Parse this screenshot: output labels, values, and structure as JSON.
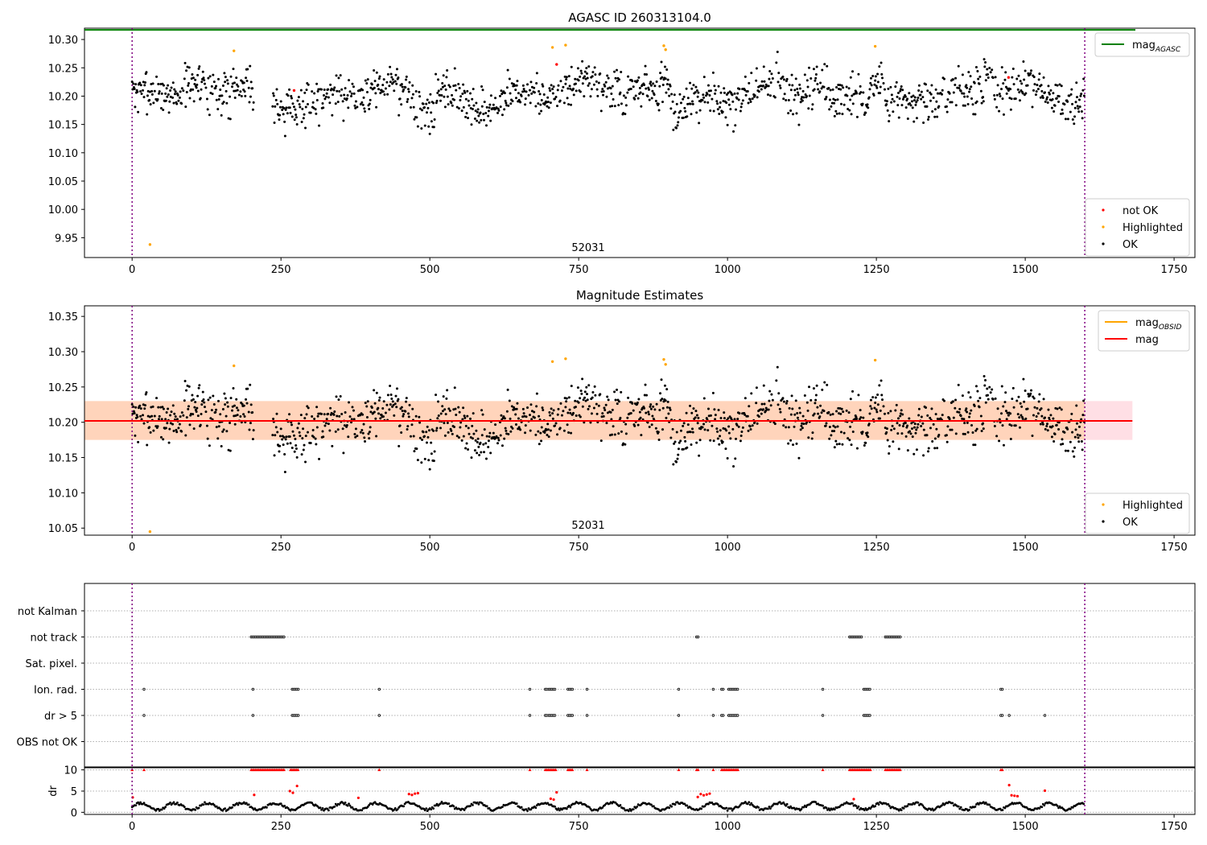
{
  "chart_data": [
    {
      "type": "scatter",
      "title": "AGASC ID 260313104.0",
      "xlim": [
        -80,
        1785
      ],
      "ylim": [
        9.915,
        10.32
      ],
      "x_ticks": [
        0,
        250,
        500,
        750,
        1000,
        1250,
        1500,
        1750
      ],
      "y_ticks": [
        9.95,
        10.0,
        10.05,
        10.1,
        10.15,
        10.2,
        10.25,
        10.3
      ],
      "y_tick_labels": [
        "9.95",
        "10.00",
        "10.05",
        "10.10",
        "10.15",
        "10.20",
        "10.25",
        "10.30"
      ],
      "x_tick_labels": [
        "0",
        "250",
        "500",
        "750",
        "1000",
        "1250",
        "1500",
        "1750"
      ],
      "obsid_label": "52031",
      "obsid_boundaries": [
        0,
        1600
      ],
      "hlines": [
        {
          "name": "mag_AGASC",
          "y": 10.317,
          "color": "#008000"
        }
      ],
      "legend_lines": [
        {
          "label": "mag",
          "sub": "AGASC",
          "color": "#008000"
        }
      ],
      "legend_points": [
        {
          "label": "not OK",
          "color": "#ff0000"
        },
        {
          "label": "Highlighted",
          "color": "#ffa500"
        },
        {
          "label": "OK",
          "color": "#000000"
        }
      ],
      "highlighted": [
        [
          30,
          9.938
        ],
        [
          171,
          10.28
        ],
        [
          706,
          10.286
        ],
        [
          728,
          10.29
        ],
        [
          893,
          10.289
        ],
        [
          896,
          10.282
        ],
        [
          1248,
          10.288
        ]
      ],
      "not_ok": [
        [
          272,
          10.21
        ],
        [
          713,
          10.256
        ],
        [
          1472,
          10.233
        ]
      ]
    },
    {
      "type": "scatter",
      "title": "Magnitude Estimates",
      "xlim": [
        -80,
        1785
      ],
      "ylim": [
        10.04,
        10.365
      ],
      "x_ticks": [
        0,
        250,
        500,
        750,
        1000,
        1250,
        1500,
        1750
      ],
      "y_ticks": [
        10.05,
        10.1,
        10.15,
        10.2,
        10.25,
        10.3,
        10.35
      ],
      "y_tick_labels": [
        "10.05",
        "10.10",
        "10.15",
        "10.20",
        "10.25",
        "10.30",
        "10.35"
      ],
      "x_tick_labels": [
        "0",
        "250",
        "500",
        "750",
        "1000",
        "1250",
        "1500",
        "1750"
      ],
      "obsid_label": "52031",
      "obsid_boundaries": [
        0,
        1600
      ],
      "mean_mag": 10.202,
      "band": [
        10.175,
        10.23
      ],
      "band_x_end": 1680,
      "legend_lines": [
        {
          "label": "mag",
          "sub": "OBSID",
          "color": "#ffa500"
        },
        {
          "label": "mag",
          "sub": "",
          "color": "#ff0000"
        }
      ],
      "legend_points": [
        {
          "label": "Highlighted",
          "color": "#ffa500"
        },
        {
          "label": "OK",
          "color": "#000000"
        }
      ],
      "highlighted": [
        [
          30,
          10.045
        ],
        [
          171,
          10.28
        ],
        [
          706,
          10.286
        ],
        [
          728,
          10.29
        ],
        [
          893,
          10.289
        ],
        [
          896,
          10.282
        ],
        [
          1248,
          10.288
        ]
      ]
    },
    {
      "type": "scatter",
      "title": "",
      "xlim": [
        -80,
        1785
      ],
      "flag_categories": [
        "not Kalman",
        "not track",
        "Sat. pixel.",
        "Ion. rad.",
        "dr > 5",
        "OBS not OK"
      ],
      "flag_ranges": {
        "not track": [
          [
            200,
            256
          ],
          [
            948,
            952
          ],
          [
            1205,
            1225
          ],
          [
            1265,
            1292
          ]
        ],
        "Ion. rad.": [
          [
            20,
            21
          ],
          [
            203,
            205
          ],
          [
            269,
            280
          ],
          [
            415,
            417
          ],
          [
            668,
            670
          ],
          [
            694,
            697
          ],
          [
            700,
            712
          ],
          [
            732,
            741
          ],
          [
            764,
            766
          ],
          [
            918,
            920
          ],
          [
            976,
            978
          ],
          [
            990,
            993
          ],
          [
            1002,
            1018
          ],
          [
            1160,
            1162
          ],
          [
            1229,
            1240
          ],
          [
            1459,
            1463
          ]
        ],
        "dr > 5": [
          [
            20,
            21
          ],
          [
            203,
            205
          ],
          [
            269,
            280
          ],
          [
            415,
            417
          ],
          [
            668,
            670
          ],
          [
            694,
            697
          ],
          [
            700,
            712
          ],
          [
            732,
            741
          ],
          [
            764,
            766
          ],
          [
            918,
            920
          ],
          [
            976,
            978
          ],
          [
            990,
            993
          ],
          [
            1002,
            1018
          ],
          [
            1160,
            1162
          ],
          [
            1229,
            1240
          ],
          [
            1459,
            1463
          ],
          [
            1473,
            1474
          ],
          [
            1533,
            1534
          ]
        ]
      },
      "dr_ylabel": "dr",
      "dr_ylim": [
        -0.5,
        10.5
      ],
      "dr_ticks": [
        0,
        5,
        10
      ],
      "dr_tick_labels": [
        "0",
        "5",
        "10"
      ],
      "x_ticks": [
        0,
        250,
        500,
        750,
        1000,
        1250,
        1500,
        1750
      ],
      "x_tick_labels": [
        "0",
        "250",
        "500",
        "750",
        "1000",
        "1250",
        "1500",
        "1750"
      ],
      "dr_clipped_ranges": [
        [
          0,
          1
        ],
        [
          20,
          21
        ],
        [
          200,
          256
        ],
        [
          266,
          280
        ],
        [
          415,
          417
        ],
        [
          668,
          670
        ],
        [
          694,
          712
        ],
        [
          732,
          741
        ],
        [
          764,
          766
        ],
        [
          918,
          920
        ],
        [
          948,
          952
        ],
        [
          976,
          978
        ],
        [
          990,
          1018
        ],
        [
          1160,
          1162
        ],
        [
          1205,
          1240
        ],
        [
          1265,
          1292
        ],
        [
          1459,
          1463
        ]
      ],
      "dr_red_points": [
        [
          1,
          3.5
        ],
        [
          205,
          4.1
        ],
        [
          265,
          5.0
        ],
        [
          270,
          4.6
        ],
        [
          277,
          6.2
        ],
        [
          380,
          3.4
        ],
        [
          465,
          4.3
        ],
        [
          470,
          4.1
        ],
        [
          475,
          4.4
        ],
        [
          480,
          4.5
        ],
        [
          703,
          3.2
        ],
        [
          708,
          3.0
        ],
        [
          713,
          4.7
        ],
        [
          950,
          3.6
        ],
        [
          955,
          4.3
        ],
        [
          960,
          4.0
        ],
        [
          965,
          4.2
        ],
        [
          970,
          4.4
        ],
        [
          1212,
          3.1
        ],
        [
          1473,
          6.4
        ],
        [
          1477,
          4.0
        ],
        [
          1482,
          3.9
        ],
        [
          1487,
          3.8
        ],
        [
          1533,
          5.1
        ]
      ],
      "obsid_boundaries": [
        0,
        1600
      ]
    }
  ]
}
